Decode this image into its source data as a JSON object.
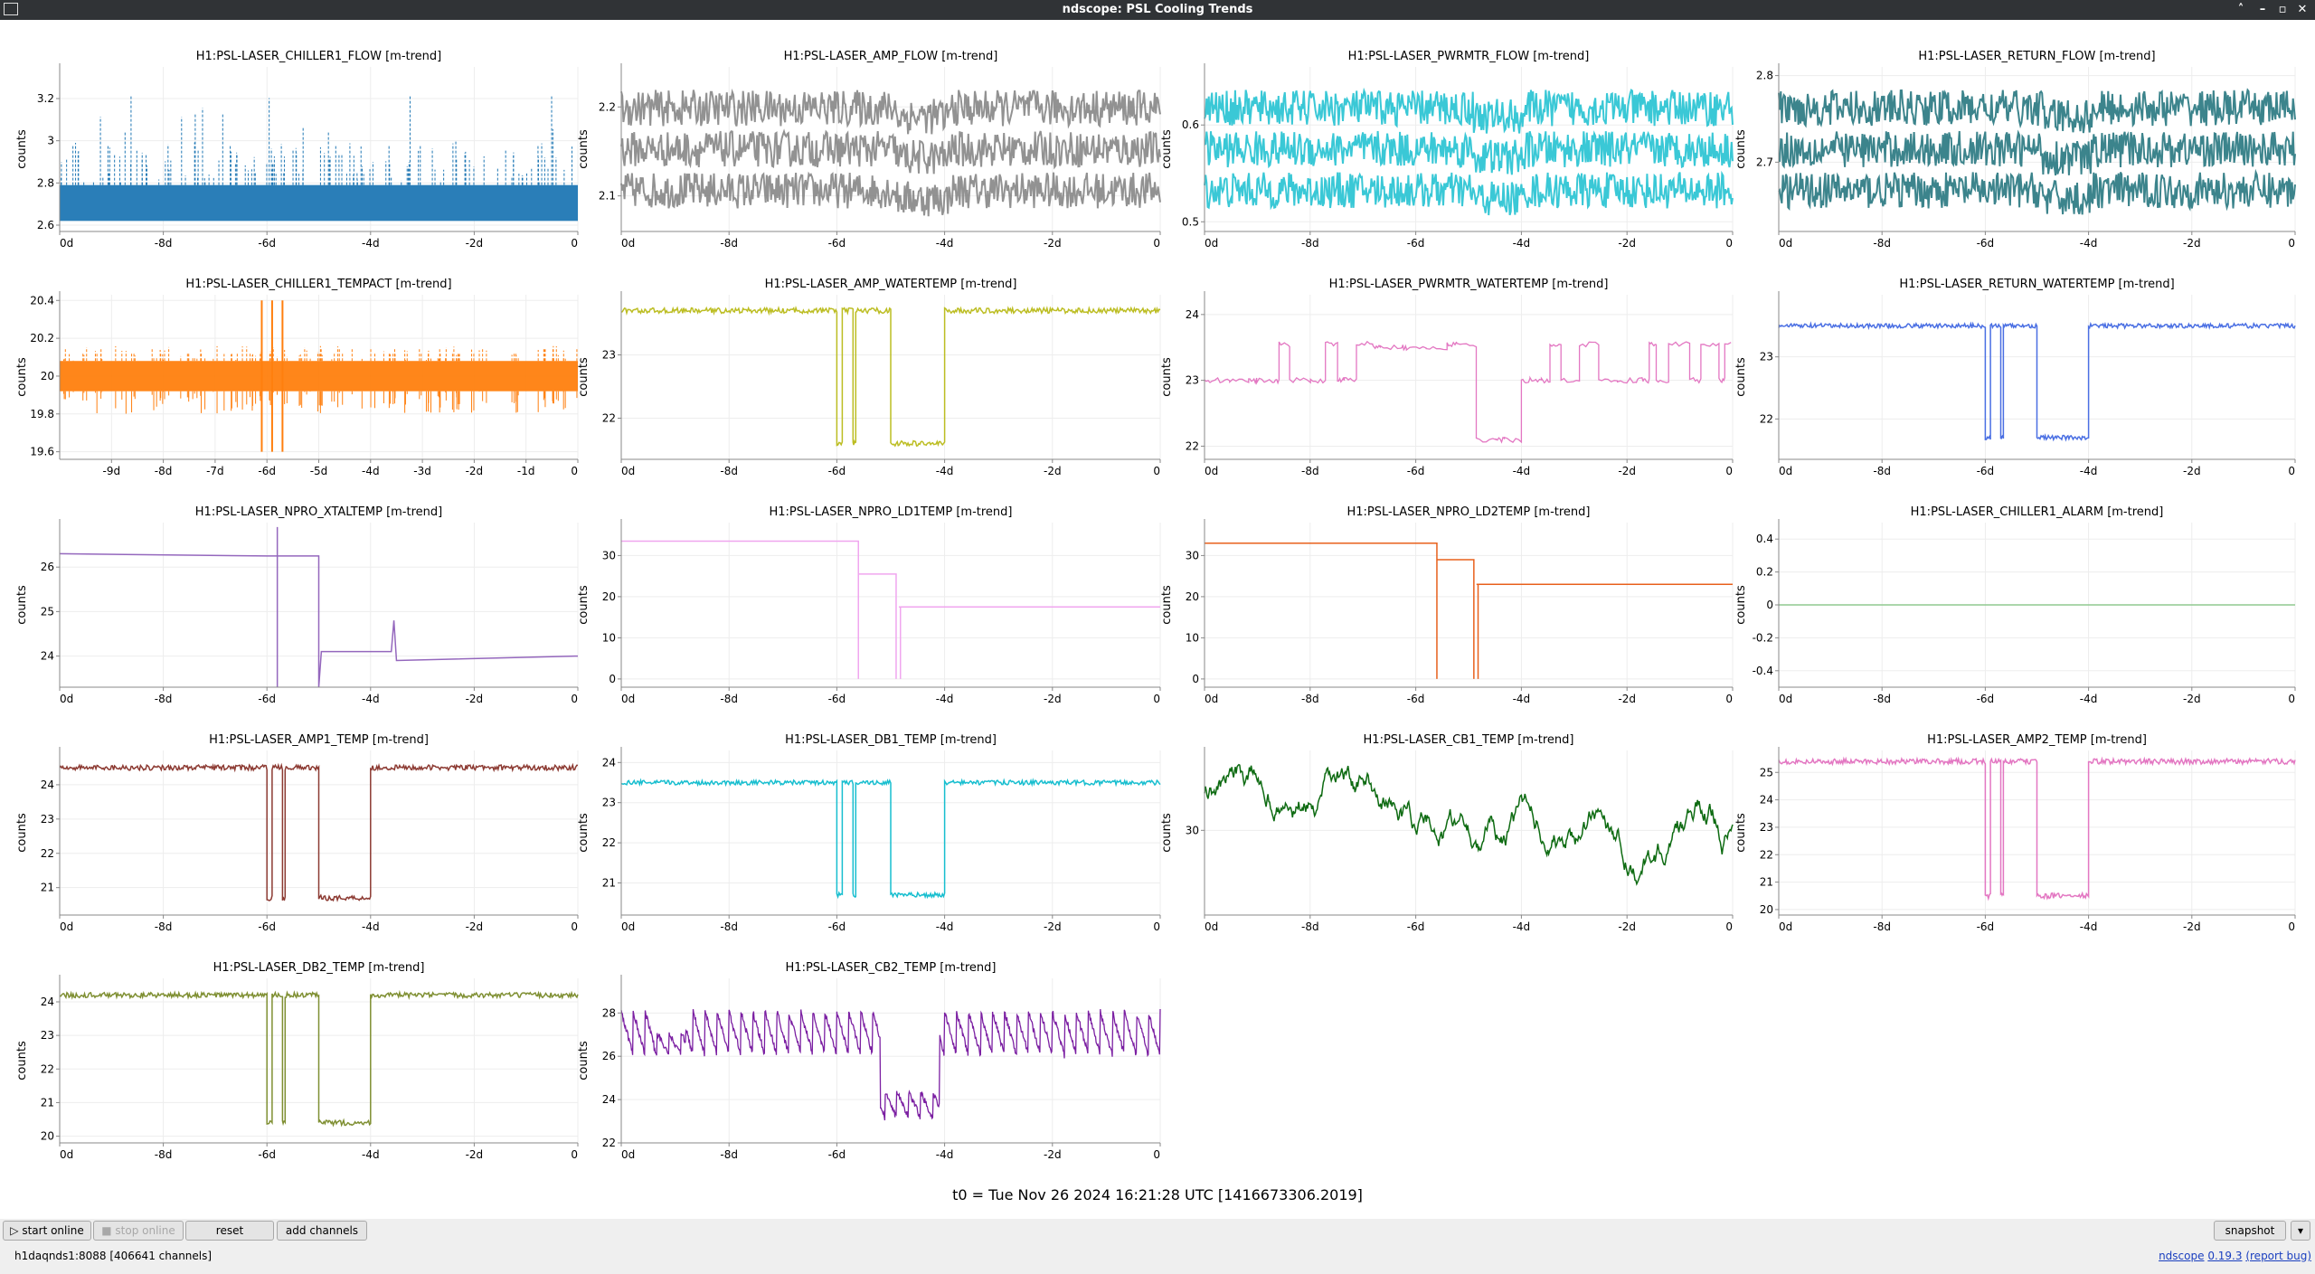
{
  "window": {
    "title": "ndscope: PSL Cooling Trends"
  },
  "t0_label": "t0 = Tue Nov 26 2024 16:21:28 UTC [1416673306.2019]",
  "toolbar": {
    "start_online": "start online",
    "stop_online": "stop online",
    "reset": "reset",
    "add_channels": "add channels",
    "snapshot": "snapshot"
  },
  "status": {
    "server": "h1daqnds1:8088  [406641 channels]",
    "version_prefix": "ndscope",
    "version": "0.19.3",
    "report_bug": "(report bug)"
  },
  "x_ticks_8d": [
    "0d",
    "-8d",
    "-6d",
    "-4d",
    "-2d",
    "0"
  ],
  "x_ticks_10d": [
    "-9d",
    "-8d",
    "-7d",
    "-6d",
    "-5d",
    "-4d",
    "-3d",
    "-2d",
    "-1d",
    "0"
  ],
  "ylabel": "counts",
  "plots": [
    {
      "id": "chiller1_flow",
      "title": "H1:PSL-LASER_CHILLER1_FLOW [m-trend]",
      "color": "#1f77b4",
      "style": "band",
      "yticks": [
        "3.2",
        "3",
        "2.8",
        "2.6"
      ],
      "yvals": [
        3.2,
        3.0,
        2.8,
        2.6
      ],
      "ylim": [
        2.57,
        3.35
      ],
      "xaxis": "8d"
    },
    {
      "id": "amp_flow",
      "title": "H1:PSL-LASER_AMP_FLOW [m-trend]",
      "color": "#7f7f7f",
      "style": "noise",
      "yticks": [
        "2.2",
        "2.1"
      ],
      "yvals": [
        2.2,
        2.1
      ],
      "ylim": [
        2.06,
        2.245
      ],
      "xaxis": "8d"
    },
    {
      "id": "pwrmtr_flow",
      "title": "H1:PSL-LASER_PWRMTR_FLOW [m-trend]",
      "color": "#17becf",
      "style": "noise",
      "yticks": [
        "0.6",
        "0.5"
      ],
      "yvals": [
        0.6,
        0.5
      ],
      "ylim": [
        0.49,
        0.66
      ],
      "xaxis": "8d"
    },
    {
      "id": "return_flow",
      "title": "H1:PSL-LASER_RETURN_FLOW [m-trend]",
      "color": "#1a6f78",
      "style": "noise",
      "yticks": [
        "2.8",
        "2.7"
      ],
      "yvals": [
        2.8,
        2.7
      ],
      "ylim": [
        2.62,
        2.81
      ],
      "xaxis": "8d"
    },
    {
      "id": "chiller1_tempact",
      "title": "H1:PSL-LASER_CHILLER1_TEMPACT [m-trend]",
      "color": "#ff7f0e",
      "style": "band2",
      "yticks": [
        "20.4",
        "20.2",
        "20",
        "19.8",
        "19.6"
      ],
      "yvals": [
        20.4,
        20.2,
        20.0,
        19.8,
        19.6
      ],
      "ylim": [
        19.56,
        20.43
      ],
      "xaxis": "10d"
    },
    {
      "id": "amp_watertemp",
      "title": "H1:PSL-LASER_AMP_WATERTEMP [m-trend]",
      "color": "#bcbd22",
      "style": "dip",
      "yticks": [
        "23",
        "22"
      ],
      "yvals": [
        23,
        22
      ],
      "ylim": [
        21.35,
        23.95
      ],
      "base": 23.7,
      "low": 21.6,
      "xaxis": "8d"
    },
    {
      "id": "pwrmtr_watertemp",
      "title": "H1:PSL-LASER_PWRMTR_WATERTEMP [m-trend]",
      "color": "#e377c2",
      "style": "steps",
      "yticks": [
        "24",
        "23",
        "22"
      ],
      "yvals": [
        24,
        23,
        22
      ],
      "ylim": [
        21.8,
        24.3
      ],
      "xaxis": "8d"
    },
    {
      "id": "return_watertemp",
      "title": "H1:PSL-LASER_RETURN_WATERTEMP [m-trend]",
      "color": "#4a6fe3",
      "style": "dip",
      "yticks": [
        "23",
        "22"
      ],
      "yvals": [
        23,
        22
      ],
      "ylim": [
        21.35,
        24.0
      ],
      "base": 23.5,
      "low": 21.7,
      "xaxis": "8d"
    },
    {
      "id": "npro_xtaltemp",
      "title": "H1:PSL-LASER_NPRO_XTALTEMP [m-trend]",
      "color": "#9467bd",
      "style": "xtal",
      "yticks": [
        "26",
        "25",
        "24"
      ],
      "yvals": [
        26,
        25,
        24
      ],
      "ylim": [
        23.3,
        27.0
      ],
      "xaxis": "8d"
    },
    {
      "id": "npro_ld1temp",
      "title": "H1:PSL-LASER_NPRO_LD1TEMP [m-trend]",
      "color": "#f0a6ef",
      "style": "ld",
      "yticks": [
        "30",
        "20",
        "10",
        "0"
      ],
      "yvals": [
        30,
        20,
        10,
        0
      ],
      "ylim": [
        -2,
        38
      ],
      "levels": [
        33.5,
        25.5,
        17.5
      ],
      "xaxis": "8d"
    },
    {
      "id": "npro_ld2temp",
      "title": "H1:PSL-LASER_NPRO_LD2TEMP [m-trend]",
      "color": "#e8601c",
      "style": "ld",
      "yticks": [
        "30",
        "20",
        "10",
        "0"
      ],
      "yvals": [
        30,
        20,
        10,
        0
      ],
      "ylim": [
        -2,
        38
      ],
      "levels": [
        33,
        29,
        23
      ],
      "xaxis": "8d"
    },
    {
      "id": "chiller1_alarm",
      "title": "H1:PSL-LASER_CHILLER1_ALARM [m-trend]",
      "color": "#8fc98f",
      "style": "flat",
      "yticks": [
        "0.4",
        "0.2",
        "0",
        "-0.2",
        "-0.4"
      ],
      "yvals": [
        0.4,
        0.2,
        0,
        -0.2,
        -0.4
      ],
      "ylim": [
        -0.5,
        0.5
      ],
      "xaxis": "8d"
    },
    {
      "id": "amp1_temp",
      "title": "H1:PSL-LASER_AMP1_TEMP [m-trend]",
      "color": "#8c3a32",
      "style": "dip",
      "yticks": [
        "24",
        "23",
        "22",
        "21"
      ],
      "yvals": [
        24,
        23,
        22,
        21
      ],
      "ylim": [
        20.2,
        25.0
      ],
      "base": 24.5,
      "low": 20.7,
      "xaxis": "8d"
    },
    {
      "id": "db1_temp",
      "title": "H1:PSL-LASER_DB1_TEMP [m-trend]",
      "color": "#17becf",
      "style": "dip",
      "yticks": [
        "24",
        "23",
        "22",
        "21"
      ],
      "yvals": [
        24,
        23,
        22,
        21
      ],
      "ylim": [
        20.2,
        24.3
      ],
      "base": 23.5,
      "low": 20.7,
      "xaxis": "8d"
    },
    {
      "id": "cb1_temp",
      "title": "H1:PSL-LASER_CB1_TEMP [m-trend]",
      "color": "#0e6b12",
      "style": "wander",
      "yticks": [
        "30"
      ],
      "yvals": [
        30
      ],
      "ylim": [
        26.5,
        33.3
      ],
      "xaxis": "8d"
    },
    {
      "id": "amp2_temp",
      "title": "H1:PSL-LASER_AMP2_TEMP [m-trend]",
      "color": "#e377c2",
      "style": "dip",
      "yticks": [
        "25",
        "24",
        "23",
        "22",
        "21",
        "20"
      ],
      "yvals": [
        25,
        24,
        23,
        22,
        21,
        20
      ],
      "ylim": [
        19.8,
        25.8
      ],
      "base": 25.4,
      "low": 20.5,
      "xaxis": "8d"
    },
    {
      "id": "db2_temp",
      "title": "H1:PSL-LASER_DB2_TEMP [m-trend]",
      "color": "#7f8f32",
      "style": "dip",
      "yticks": [
        "24",
        "23",
        "22",
        "21",
        "20"
      ],
      "yvals": [
        24,
        23,
        22,
        21,
        20
      ],
      "ylim": [
        19.8,
        24.7
      ],
      "base": 24.2,
      "low": 20.4,
      "xaxis": "8d"
    },
    {
      "id": "cb2_temp",
      "title": "H1:PSL-LASER_CB2_TEMP [m-trend]",
      "color": "#7b1fa2",
      "style": "saw",
      "yticks": [
        "28",
        "26",
        "24",
        "22"
      ],
      "yvals": [
        28,
        26,
        24,
        22
      ],
      "ylim": [
        22.0,
        29.6
      ],
      "xaxis": "8d"
    }
  ]
}
